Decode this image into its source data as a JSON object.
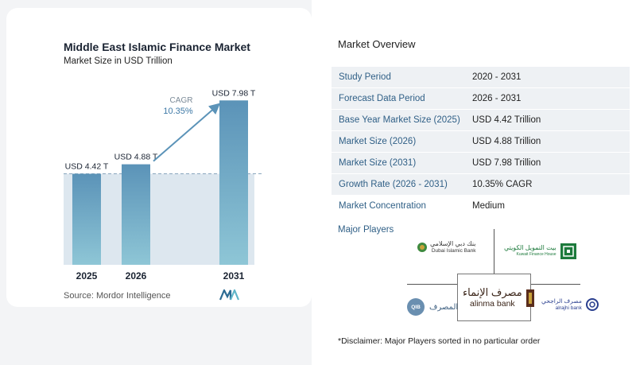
{
  "chart": {
    "title": "Middle East Islamic Finance Market",
    "subtitle": "Market Size in USD Trillion",
    "source": "Source:  Mordor Intelligence",
    "cagr_label": "CAGR",
    "cagr_value": "10.35%"
  },
  "chart_data": {
    "type": "bar",
    "title": "Middle East Islamic Finance Market",
    "subtitle": "Market Size in USD Trillion",
    "categories": [
      "2025",
      "2026",
      "2031"
    ],
    "values": [
      4.42,
      4.88,
      7.98
    ],
    "data_labels": [
      "USD 4.42 T",
      "USD 4.88 T",
      "USD 7.98 T"
    ],
    "ylabel": "",
    "xlabel": "",
    "ylim": [
      0,
      8.3
    ],
    "grid": false,
    "annotation": "CAGR 10.35%",
    "colors": {
      "bar": "#5b93b8",
      "bar_light": "#8ec6d6",
      "shade": "#dde7ef",
      "arrow": "#5b93b8",
      "reference_line": "#8aa7be"
    }
  },
  "overview": {
    "title": "Market Overview",
    "rows": [
      {
        "label": "Study Period",
        "value": "2020 - 2031"
      },
      {
        "label": "Forecast Data Period",
        "value": "2026 - 2031"
      },
      {
        "label": "Base Year Market Size (2025)",
        "value": "USD 4.42 Trillion"
      },
      {
        "label": "Market Size (2026)",
        "value": "USD 4.88 Trillion"
      },
      {
        "label": "Market Size (2031)",
        "value": "USD 7.98 Trillion"
      },
      {
        "label": "Growth Rate (2026 - 2031)",
        "value": "10.35% CAGR"
      },
      {
        "label": "Market Concentration",
        "value": "Medium"
      }
    ]
  },
  "players": {
    "title": "Major Players",
    "dib": {
      "arabic": "بنك دبي الإسلامي",
      "english": "Dubai Islamic Bank"
    },
    "kfh": {
      "arabic": "بيت التمويل الكويتي",
      "english": "Kuwait Finance House"
    },
    "qib": {
      "mark": "QIB",
      "arabic": "المصرف"
    },
    "alinma": {
      "arabic": "مصرف الإنماء",
      "english": "alinma bank"
    },
    "alrajhi": {
      "arabic": "مصرف الراجحي",
      "english": "alrajhi bank"
    }
  },
  "disclaimer": "*Disclaimer: Major Players sorted in no particular order"
}
